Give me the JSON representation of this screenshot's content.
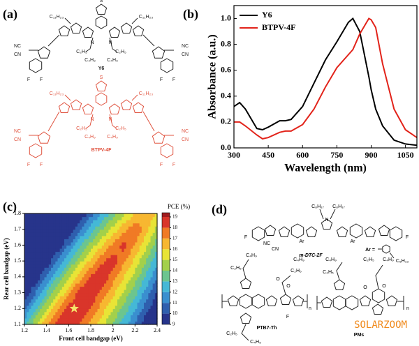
{
  "panel_a": {
    "label": "(a)",
    "molecules": [
      {
        "name": "Y6",
        "color": "#222222",
        "atoms": [
          "S",
          "N",
          "N",
          "C₁₁H₂₃",
          "C₁₁H₂₃",
          "C₂H₅",
          "C₄H₉",
          "C₂H₅",
          "C₄H₉",
          "NC",
          "CN",
          "NC",
          "CN",
          "F",
          "F",
          "F",
          "F"
        ]
      },
      {
        "name": "BTPV-4F",
        "color": "#e0533f",
        "atoms": [
          "S",
          "N",
          "N",
          "C₁₁H₂₃",
          "C₁₁H₂₃",
          "C₂H₅",
          "C₄H₉",
          "C₂H₅",
          "C₄H₉",
          "NC",
          "CN",
          "NC",
          "CN",
          "F",
          "F",
          "F",
          "F"
        ]
      }
    ]
  },
  "chart_data": [
    {
      "type": "line",
      "label": "(b)",
      "xlabel": "Wavelength (nm)",
      "ylabel": "Absorbance (a.u.)",
      "x": [
        300,
        325,
        350,
        400,
        425,
        450,
        500,
        525,
        550,
        600,
        650,
        700,
        750,
        800,
        820,
        850,
        890,
        900,
        920,
        950,
        1000,
        1050,
        1100
      ],
      "series": [
        {
          "name": "Y6",
          "color": "#000000",
          "values": [
            0.32,
            0.35,
            0.3,
            0.15,
            0.14,
            0.16,
            0.21,
            0.21,
            0.22,
            0.32,
            0.5,
            0.68,
            0.82,
            0.97,
            1.0,
            0.9,
            0.55,
            0.45,
            0.3,
            0.17,
            0.06,
            0.03,
            0.02
          ]
        },
        {
          "name": "BTPV-4F",
          "color": "#e2231a",
          "values": [
            0.2,
            0.2,
            0.17,
            0.1,
            0.07,
            0.08,
            0.12,
            0.13,
            0.13,
            0.18,
            0.3,
            0.47,
            0.62,
            0.72,
            0.76,
            0.88,
            1.0,
            0.99,
            0.93,
            0.65,
            0.3,
            0.14,
            0.08
          ]
        }
      ],
      "xlim": [
        300,
        1100
      ],
      "ylim": [
        0,
        1.1
      ],
      "xticks": [
        300,
        450,
        600,
        750,
        900,
        1050
      ],
      "yticks": [
        {
          "value": 0,
          "label": "0.0"
        },
        0.2,
        0.4,
        0.6,
        0.8,
        {
          "value": 1,
          "label": "1.0"
        }
      ],
      "legend": "upper left"
    },
    {
      "type": "contour",
      "label": "(c)",
      "xlabel": "Front cell bandgap (eV)",
      "ylabel": "Rear cell bandgap (eV)",
      "colorbar_label": "PCE (%)",
      "x": [
        1.2,
        1.3,
        1.4,
        1.5,
        1.6,
        1.7,
        1.8,
        1.9,
        2.0,
        2.1,
        2.2,
        2.3,
        2.4
      ],
      "y": [
        1.1,
        1.2,
        1.3,
        1.4,
        1.5,
        1.6,
        1.7,
        1.8
      ],
      "z": [
        [
          12.7,
          14.8,
          16.8,
          18.7,
          18.8,
          17.8,
          16.6,
          15.3,
          13.9,
          12.4,
          10.9,
          9.2,
          9
        ],
        [
          10.8,
          12.9,
          14.9,
          16.8,
          18.6,
          19.0,
          17.8,
          16.5,
          15.1,
          13.6,
          12.1,
          10.4,
          9
        ],
        [
          9,
          11.0,
          13.0,
          14.9,
          16.7,
          18.5,
          19.0,
          17.7,
          16.3,
          14.8,
          13.3,
          11.6,
          9.8
        ],
        [
          9,
          9.1,
          11.1,
          13.0,
          14.8,
          16.6,
          18.2,
          18.9,
          17.5,
          16.0,
          14.5,
          12.8,
          11.0
        ],
        [
          9,
          9,
          9.2,
          11.1,
          12.9,
          14.7,
          16.3,
          17.8,
          18.7,
          17.2,
          15.7,
          14.0,
          12.2
        ],
        [
          9,
          9,
          9,
          9.2,
          11.0,
          12.8,
          14.4,
          15.9,
          17.3,
          18.4,
          16.9,
          15.2,
          13.4
        ],
        [
          9,
          9,
          9,
          9,
          9.1,
          10.9,
          12.5,
          14.0,
          15.4,
          16.7,
          17.9,
          16.4,
          14.6
        ],
        [
          9,
          9,
          9,
          9,
          9,
          9.0,
          10.6,
          12.1,
          13.5,
          14.8,
          16.0,
          17.1,
          15.8
        ]
      ],
      "xlim": [
        1.2,
        2.4
      ],
      "ylim": [
        1.1,
        1.8
      ],
      "xticks": [
        1.2,
        1.4,
        1.6,
        1.8,
        2,
        2.2,
        2.4
      ],
      "yticks": [
        1.1,
        1.2,
        1.3,
        1.4,
        1.5,
        1.6,
        1.7,
        1.8
      ],
      "zlim": [
        9,
        19
      ],
      "zticks": [
        9,
        10,
        11,
        12,
        13,
        14,
        15,
        16,
        17,
        18,
        19
      ],
      "colormap": [
        "#27348b",
        "#2f5fae",
        "#3a8fcf",
        "#45b8d6",
        "#6cc58f",
        "#a3d04b",
        "#e8e436",
        "#f7b731",
        "#f07a25",
        "#d9352a",
        "#a01c1f"
      ],
      "star": {
        "x": 1.65,
        "y": 1.2,
        "color": "#f5e36a"
      }
    }
  ],
  "panel_d": {
    "label": "(d)",
    "ar_label": "Ar =",
    "molecules": [
      {
        "name": "m-DTC-2F",
        "atoms": [
          "C₈H₁₇",
          "C₈H₁₇",
          "N",
          "Ar",
          "Ar",
          "NC",
          "CN",
          "F",
          "F",
          "C₆H₁₃"
        ]
      },
      {
        "name": "PTB7-Th",
        "atoms": [
          "C₄H₉",
          "C₂H₅",
          "C₂H₅",
          "C₄H₉",
          "O",
          "O",
          "C₂H₅",
          "C₄H₉",
          "F",
          "n"
        ]
      },
      {
        "name": "PMs",
        "atoms": [
          "C₄H₉",
          "C₂H₅",
          "C₂H₅",
          "C₄H₉",
          "O",
          "O",
          "n"
        ]
      }
    ]
  },
  "watermark": "SOLARZOOM"
}
